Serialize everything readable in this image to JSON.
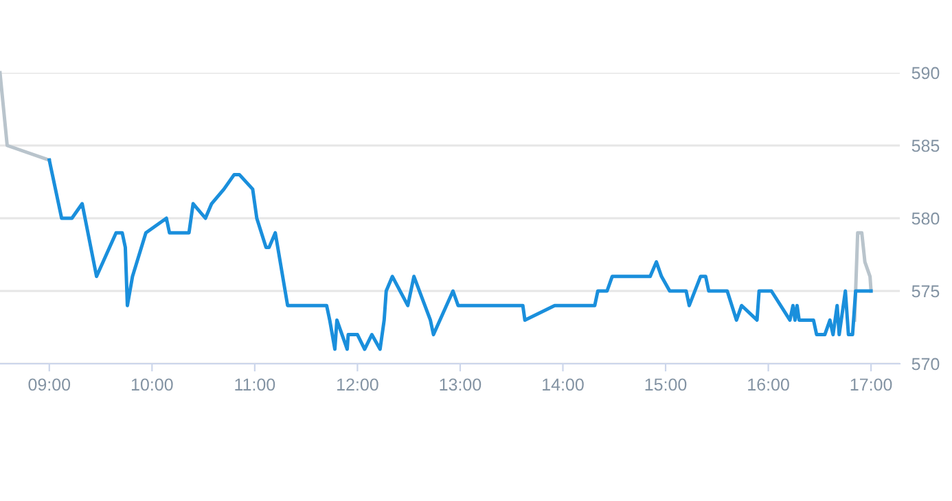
{
  "chart_data": {
    "type": "line",
    "xlim": [
      8.52,
      17.28
    ],
    "ylim": [
      570,
      590
    ],
    "xticks": [
      {
        "value": 9,
        "label": "09:00"
      },
      {
        "value": 10,
        "label": "10:00"
      },
      {
        "value": 11,
        "label": "11:00"
      },
      {
        "value": 12,
        "label": "12:00"
      },
      {
        "value": 13,
        "label": "13:00"
      },
      {
        "value": 14,
        "label": "14:00"
      },
      {
        "value": 15,
        "label": "15:00"
      },
      {
        "value": 16,
        "label": "16:00"
      },
      {
        "value": 17,
        "label": "17:00"
      }
    ],
    "yticks": [
      570,
      575,
      580,
      585,
      590
    ],
    "grid": "y",
    "legend": false,
    "marker": "none",
    "line_style": "solid",
    "series": [
      {
        "color": "#b9c4cc",
        "x": [
          8.52,
          8.59,
          9.0
        ],
        "values": [
          590,
          585,
          584
        ]
      },
      {
        "color": "#b9c4cc",
        "x": [
          16.84,
          16.87,
          16.91,
          16.94,
          16.99,
          17.0
        ],
        "values": [
          573,
          579,
          579,
          577,
          576,
          575
        ]
      },
      {
        "color": "#1a8fdc",
        "x": [
          9.0,
          9.03,
          9.12,
          9.22,
          9.32,
          9.46,
          9.65,
          9.71,
          9.74,
          9.76,
          9.81,
          9.94,
          10.14,
          10.17,
          10.36,
          10.4,
          10.52,
          10.58,
          10.7,
          10.8,
          10.85,
          10.98,
          11.02,
          11.11,
          11.14,
          11.2,
          11.32,
          11.7,
          11.73,
          11.78,
          11.8,
          11.9,
          11.91,
          12.0,
          12.07,
          12.14,
          12.22,
          12.26,
          12.28,
          12.34,
          12.49,
          12.55,
          12.71,
          12.74,
          12.93,
          12.98,
          13.61,
          13.63,
          13.92,
          14.31,
          14.34,
          14.43,
          14.48,
          14.85,
          14.91,
          14.96,
          15.04,
          15.2,
          15.23,
          15.34,
          15.39,
          15.42,
          15.6,
          15.69,
          15.74,
          15.89,
          15.91,
          16.03,
          16.21,
          16.24,
          16.26,
          16.28,
          16.3,
          16.44,
          16.47,
          16.55,
          16.6,
          16.63,
          16.67,
          16.69,
          16.75,
          16.78,
          16.82,
          16.85,
          17.0
        ],
        "values": [
          584,
          583,
          580,
          580,
          581,
          576,
          579,
          579,
          578,
          574,
          576,
          579,
          580,
          579,
          579,
          581,
          580,
          581,
          582,
          583,
          583,
          582,
          580,
          578,
          578,
          579,
          574,
          574,
          573,
          571,
          573,
          571,
          572,
          572,
          571,
          572,
          571,
          573,
          575,
          576,
          574,
          576,
          573,
          572,
          575,
          574,
          574,
          573,
          574,
          574,
          575,
          575,
          576,
          576,
          577,
          576,
          575,
          575,
          574,
          576,
          576,
          575,
          575,
          573,
          574,
          573,
          575,
          575,
          573,
          574,
          573,
          574,
          573,
          573,
          572,
          572,
          573,
          572,
          574,
          572,
          575,
          572,
          572,
          575,
          575
        ]
      }
    ]
  }
}
